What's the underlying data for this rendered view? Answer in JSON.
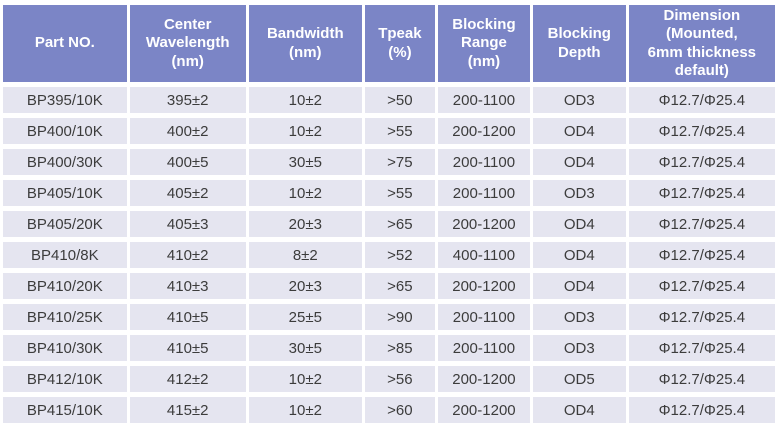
{
  "colors": {
    "header_bg": "#7b85c6",
    "header_text": "#ffffff",
    "row_bg": "#e5e5f0",
    "cell_text": "#3c3c3c",
    "grid_gap": "#ffffff"
  },
  "table": {
    "columns": [
      "Part NO.",
      "Center\nWavelength\n(nm)",
      "Bandwidth\n(nm)",
      "Tpeak\n(%)",
      "Blocking\nRange\n(nm)",
      "Blocking\nDepth",
      "Dimension\n(Mounted,\n6mm thickness\ndefault)"
    ],
    "rows": [
      [
        "BP395/10K",
        "395±2",
        "10±2",
        ">50",
        "200-1100",
        "OD3",
        "Φ12.7/Φ25.4"
      ],
      [
        "BP400/10K",
        "400±2",
        "10±2",
        ">55",
        "200-1200",
        "OD4",
        "Φ12.7/Φ25.4"
      ],
      [
        "BP400/30K",
        "400±5",
        "30±5",
        ">75",
        "200-1100",
        "OD4",
        "Φ12.7/Φ25.4"
      ],
      [
        "BP405/10K",
        "405±2",
        "10±2",
        ">55",
        "200-1100",
        "OD3",
        "Φ12.7/Φ25.4"
      ],
      [
        "BP405/20K",
        "405±3",
        "20±3",
        ">65",
        "200-1200",
        "OD4",
        "Φ12.7/Φ25.4"
      ],
      [
        "BP410/8K",
        "410±2",
        "8±2",
        ">52",
        "400-1100",
        "OD4",
        "Φ12.7/Φ25.4"
      ],
      [
        "BP410/20K",
        "410±3",
        "20±3",
        ">65",
        "200-1200",
        "OD4",
        "Φ12.7/Φ25.4"
      ],
      [
        "BP410/25K",
        "410±5",
        "25±5",
        ">90",
        "200-1100",
        "OD3",
        "Φ12.7/Φ25.4"
      ],
      [
        "BP410/30K",
        "410±5",
        "30±5",
        ">85",
        "200-1100",
        "OD3",
        "Φ12.7/Φ25.4"
      ],
      [
        "BP412/10K",
        "412±2",
        "10±2",
        ">56",
        "200-1200",
        "OD5",
        "Φ12.7/Φ25.4"
      ],
      [
        "BP415/10K",
        "415±2",
        "10±2",
        ">60",
        "200-1200",
        "OD4",
        "Φ12.7/Φ25.4"
      ]
    ]
  }
}
